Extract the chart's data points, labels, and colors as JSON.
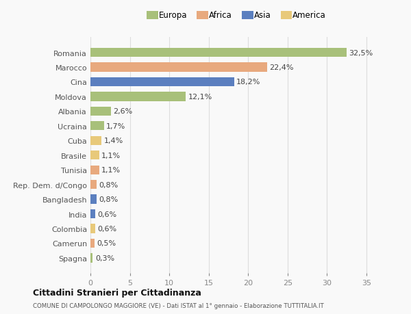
{
  "categories": [
    "Romania",
    "Marocco",
    "Cina",
    "Moldova",
    "Albania",
    "Ucraina",
    "Cuba",
    "Brasile",
    "Tunisia",
    "Rep. Dem. d/Congo",
    "Bangladesh",
    "India",
    "Colombia",
    "Camerun",
    "Spagna"
  ],
  "values": [
    32.5,
    22.4,
    18.2,
    12.1,
    2.6,
    1.7,
    1.4,
    1.1,
    1.1,
    0.8,
    0.8,
    0.6,
    0.6,
    0.5,
    0.3
  ],
  "labels": [
    "32,5%",
    "22,4%",
    "18,2%",
    "12,1%",
    "2,6%",
    "1,7%",
    "1,4%",
    "1,1%",
    "1,1%",
    "0,8%",
    "0,8%",
    "0,6%",
    "0,6%",
    "0,5%",
    "0,3%"
  ],
  "colors": [
    "#a8c07a",
    "#e8a97e",
    "#5b7fbf",
    "#a8c07a",
    "#a8c07a",
    "#a8c07a",
    "#e8c97a",
    "#e8c97a",
    "#e8a97e",
    "#e8a97e",
    "#5b7fbf",
    "#5b7fbf",
    "#e8c97a",
    "#e8a97e",
    "#a8c07a"
  ],
  "continent_colors": {
    "Europa": "#a8c07a",
    "Africa": "#e8a97e",
    "Asia": "#5b7fbf",
    "America": "#e8c97a"
  },
  "xlim": [
    0,
    37
  ],
  "xticks": [
    0,
    5,
    10,
    15,
    20,
    25,
    30,
    35
  ],
  "title": "Cittadini Stranieri per Cittadinanza",
  "subtitle": "COMUNE DI CAMPOLONGO MAGGIORE (VE) - Dati ISTAT al 1° gennaio - Elaborazione TUTTITALIA.IT",
  "background_color": "#f9f9f9",
  "bar_height": 0.62,
  "grid_color": "#dddddd",
  "label_fontsize": 8,
  "tick_label_fontsize": 8,
  "legend_fontsize": 8.5
}
